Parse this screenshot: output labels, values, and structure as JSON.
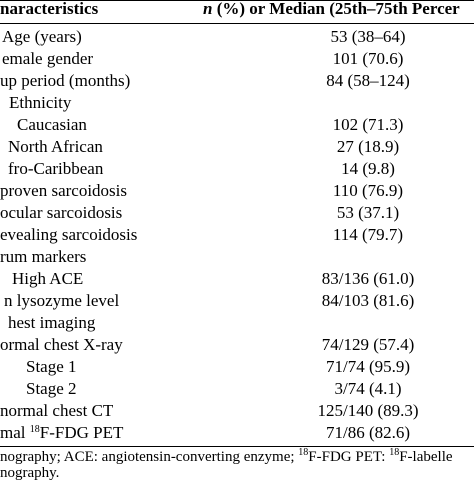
{
  "header": {
    "col1": "naracteristics",
    "col2_italic": "n",
    "col2_rest": " (%) or Median (25th–75th Percer"
  },
  "rows": [
    {
      "label": "Age (years)",
      "value": "53 (38–64)"
    },
    {
      "label": "emale gender",
      "value": "101 (70.6)"
    },
    {
      "label": "up period (months)",
      "value": "84 (58–124)"
    },
    {
      "label": "Ethnicity",
      "value": ""
    },
    {
      "label": "Caucasian",
      "value": "102 (71.3)"
    },
    {
      "label": "North African",
      "value": "27 (18.9)"
    },
    {
      "label": "fro-Caribbean",
      "value": "14 (9.8)"
    },
    {
      "label": "proven sarcoidosis",
      "value": "110 (76.9)"
    },
    {
      "label": "ocular sarcoidosis",
      "value": "53 (37.1)"
    },
    {
      "label": "evealing sarcoidosis",
      "value": "114 (79.7)"
    },
    {
      "label": "rum markers",
      "value": ""
    },
    {
      "label": "High ACE",
      "value": "83/136 (61.0)"
    },
    {
      "label": "n lysozyme level",
      "value": "84/103 (81.6)"
    },
    {
      "label": "hest imaging",
      "value": ""
    },
    {
      "label": "ormal chest X-ray",
      "value": "74/129 (57.4)"
    },
    {
      "label": "Stage 1",
      "value": "71/74 (95.9)"
    },
    {
      "label": "Stage 2",
      "value": "3/74 (4.1)"
    },
    {
      "label": "normal chest CT",
      "value": "125/140 (89.3)"
    },
    {
      "label_pre": "mal ",
      "label_sup": "18",
      "label_post": "F-FDG PET",
      "value": "71/86 (82.6)"
    }
  ],
  "footnote": {
    "line1_a": "nography; ACE: angiotensin-converting enzyme; ",
    "line1_sup1": "18",
    "line1_b": "F-FDG PET: ",
    "line1_sup2": "18",
    "line1_c": "F-labelle",
    "line2": "nography."
  }
}
